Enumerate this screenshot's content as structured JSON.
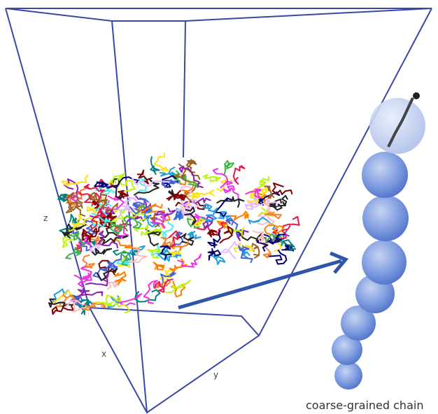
{
  "labels": {
    "z": "z",
    "x": "x",
    "y": "y",
    "caption": "coarse-grained chain"
  }
}
